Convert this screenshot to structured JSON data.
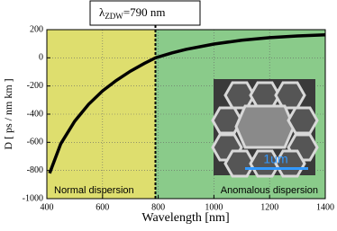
{
  "chart_data": {
    "type": "line",
    "xlabel": "Wavelength [nm]",
    "ylabel": "D [ ps / nm km ]",
    "xlim": [
      400,
      1400
    ],
    "ylim": [
      -1000,
      200
    ],
    "xticks": [
      400,
      600,
      800,
      1000,
      1200,
      1400
    ],
    "yticks": [
      -1000,
      -800,
      -600,
      -400,
      -200,
      0,
      200
    ],
    "grid": true,
    "zdw": 790,
    "zdw_label": {
      "prefix": "λ",
      "subscript": "ZDW",
      "suffix": "=790 nm"
    },
    "regions": [
      {
        "label": "Normal dispersion",
        "xlim": [
          400,
          790
        ],
        "color": "#dede6e"
      },
      {
        "label": "Anomalous dispersion",
        "xlim": [
          790,
          1400
        ],
        "color": "#8acb8a"
      }
    ],
    "inset_scale_label": "1um",
    "series": [
      {
        "color": "#000000",
        "x": [
          410,
          450,
          500,
          550,
          600,
          650,
          700,
          750,
          790,
          850,
          900,
          1000,
          1100,
          1200,
          1300,
          1400
        ],
        "values": [
          -820,
          -610,
          -450,
          -330,
          -235,
          -160,
          -95,
          -40,
          0,
          35,
          60,
          98,
          125,
          143,
          155,
          163
        ]
      }
    ]
  }
}
